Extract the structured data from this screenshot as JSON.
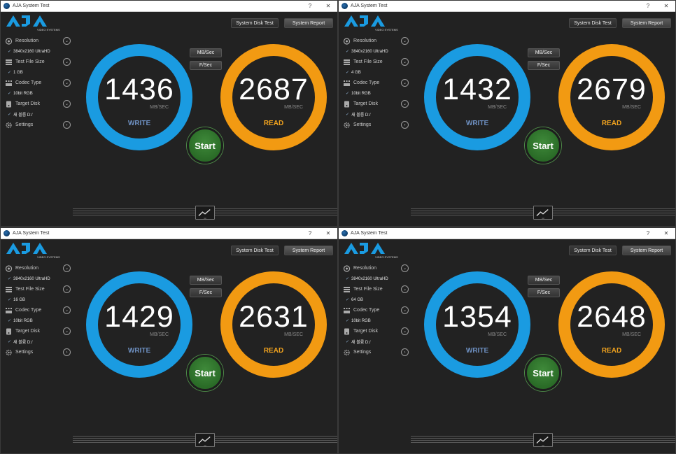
{
  "windows": [
    {
      "title": "AJA System Test",
      "controls": {
        "help": "?",
        "close": "✕"
      },
      "logo_subtitle": "VIDEO SYSTEMS",
      "toolbar": {
        "disk_test": "System Disk Test",
        "report": "System Report"
      },
      "units": {
        "mbsec": "MB/Sec",
        "fsec": "F/Sec"
      },
      "sidebar": {
        "resolution": {
          "label": "Resolution",
          "value": "3840x2160 UltraHD"
        },
        "file_size": {
          "label": "Test File Size",
          "value": "1 GB"
        },
        "codec": {
          "label": "Codec Type",
          "value": "10bit RGB"
        },
        "disk": {
          "label": "Target Disk",
          "value": "새 볼륨 D:/"
        },
        "settings": {
          "label": "Settings"
        }
      },
      "write": {
        "value": "1436",
        "unit": "MB/SEC",
        "label": "WRITE"
      },
      "read": {
        "value": "2687",
        "unit": "MB/SEC",
        "label": "READ"
      },
      "start_label": "Start"
    },
    {
      "title": "AJA System Test",
      "controls": {
        "help": "?",
        "close": "✕"
      },
      "logo_subtitle": "VIDEO SYSTEMS",
      "toolbar": {
        "disk_test": "System Disk Test",
        "report": "System Report"
      },
      "units": {
        "mbsec": "MB/Sec",
        "fsec": "F/Sec"
      },
      "sidebar": {
        "resolution": {
          "label": "Resolution",
          "value": "3840x2160 UltraHD"
        },
        "file_size": {
          "label": "Test File Size",
          "value": "4 GB"
        },
        "codec": {
          "label": "Codec Type",
          "value": "10bit RGB"
        },
        "disk": {
          "label": "Target Disk",
          "value": "새 볼륨 D:/"
        },
        "settings": {
          "label": "Settings"
        }
      },
      "write": {
        "value": "1432",
        "unit": "MB/SEC",
        "label": "WRITE"
      },
      "read": {
        "value": "2679",
        "unit": "MB/SEC",
        "label": "READ"
      },
      "start_label": "Start"
    },
    {
      "title": "AJA System Test",
      "controls": {
        "help": "?",
        "close": "✕"
      },
      "logo_subtitle": "VIDEO SYSTEMS",
      "toolbar": {
        "disk_test": "System Disk Test",
        "report": "System Report"
      },
      "units": {
        "mbsec": "MB/Sec",
        "fsec": "F/Sec"
      },
      "sidebar": {
        "resolution": {
          "label": "Resolution",
          "value": "3840x2160 UltraHD"
        },
        "file_size": {
          "label": "Test File Size",
          "value": "16 GB"
        },
        "codec": {
          "label": "Codec Type",
          "value": "10bit RGB"
        },
        "disk": {
          "label": "Target Disk",
          "value": "새 볼륨 D:/"
        },
        "settings": {
          "label": "Settings"
        }
      },
      "write": {
        "value": "1429",
        "unit": "MB/SEC",
        "label": "WRITE"
      },
      "read": {
        "value": "2631",
        "unit": "MB/SEC",
        "label": "READ"
      },
      "start_label": "Start"
    },
    {
      "title": "AJA System Test",
      "controls": {
        "help": "?",
        "close": "✕"
      },
      "logo_subtitle": "VIDEO SYSTEMS",
      "toolbar": {
        "disk_test": "System Disk Test",
        "report": "System Report"
      },
      "units": {
        "mbsec": "MB/Sec",
        "fsec": "F/Sec"
      },
      "sidebar": {
        "resolution": {
          "label": "Resolution",
          "value": "3840x2160 UltraHD"
        },
        "file_size": {
          "label": "Test File Size",
          "value": "64 GB"
        },
        "codec": {
          "label": "Codec Type",
          "value": "10bit RGB"
        },
        "disk": {
          "label": "Target Disk",
          "value": "새 볼륨 D:/"
        },
        "settings": {
          "label": "Settings"
        }
      },
      "write": {
        "value": "1354",
        "unit": "MB/SEC",
        "label": "WRITE"
      },
      "read": {
        "value": "2648",
        "unit": "MB/SEC",
        "label": "READ"
      },
      "start_label": "Start"
    }
  ],
  "colors": {
    "write_ring": "#1a9be1",
    "read_ring": "#f29a12",
    "start_button": "#2f7a2c",
    "logo_blue": "#1a9be1"
  }
}
